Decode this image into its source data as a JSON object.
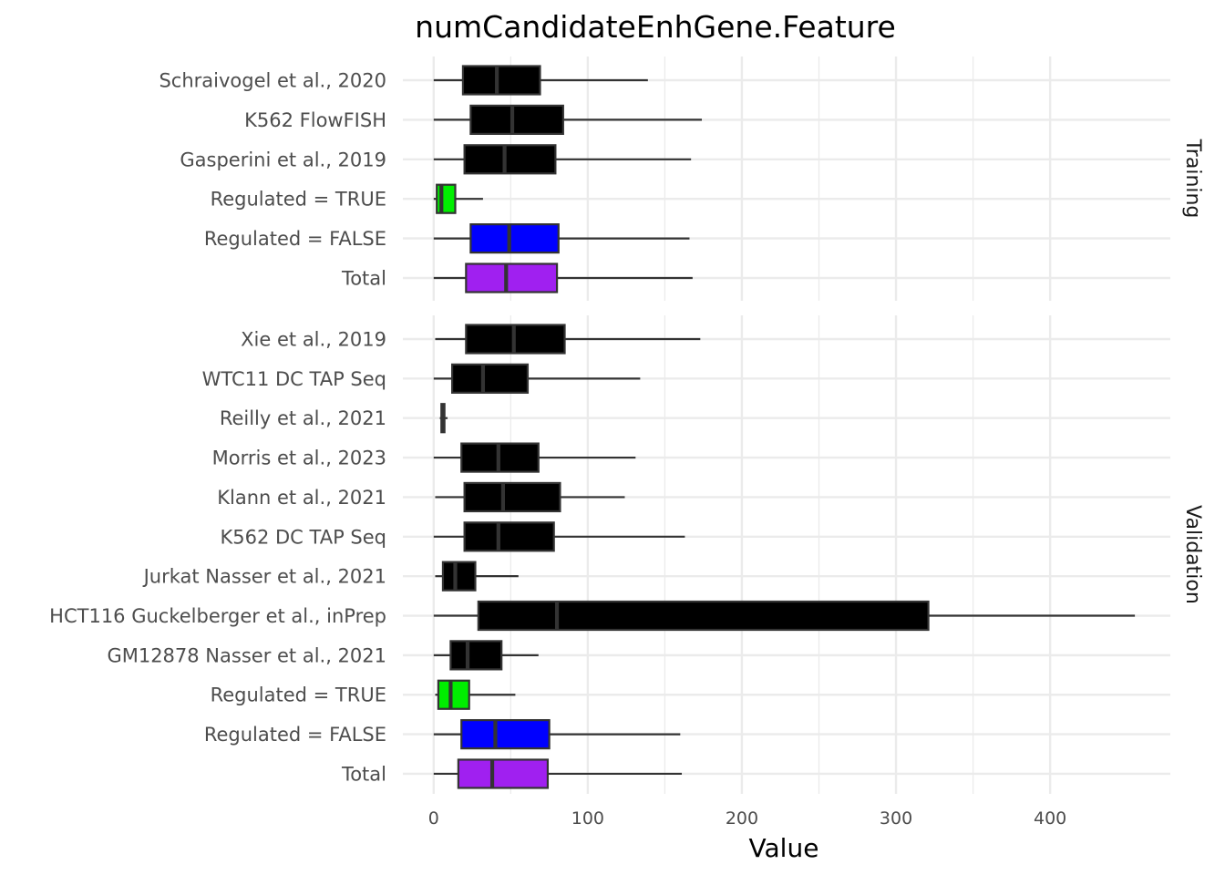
{
  "chart_data": {
    "type": "boxplot",
    "title": "numCandidateEnhGene.Feature",
    "xlabel": "Value",
    "ylabel": "",
    "xlim": [
      -20,
      478
    ],
    "x_ticks": [
      0,
      100,
      200,
      300,
      400
    ],
    "x_tick_labels": [
      "0",
      "100",
      "200",
      "300",
      "400"
    ],
    "grid": true,
    "legend": "none",
    "colors": {
      "dataset": "#000000",
      "regulated_true": "#00ee00",
      "regulated_false": "#0000ff",
      "total": "#a020f0",
      "box_outline": "#333333",
      "whisker": "#333333",
      "grid": "#ebebeb"
    },
    "panels": [
      {
        "facet": "Training",
        "rows": [
          {
            "label": "Schraivogel et al., 2020",
            "color": "#000000",
            "whisker_low": 0,
            "q1": 19,
            "median": 41,
            "q3": 69,
            "whisker_high": 139
          },
          {
            "label": "K562 FlowFISH",
            "color": "#000000",
            "whisker_low": 0,
            "q1": 24,
            "median": 51,
            "q3": 84,
            "whisker_high": 174
          },
          {
            "label": "Gasperini et al., 2019",
            "color": "#000000",
            "whisker_low": 0,
            "q1": 20,
            "median": 46,
            "q3": 79,
            "whisker_high": 167
          },
          {
            "label": "Regulated = TRUE",
            "color": "#00ee00",
            "whisker_low": 0,
            "q1": 2,
            "median": 5,
            "q3": 14,
            "whisker_high": 32
          },
          {
            "label": "Regulated = FALSE",
            "color": "#0000ff",
            "whisker_low": 0,
            "q1": 24,
            "median": 49,
            "q3": 81,
            "whisker_high": 166
          },
          {
            "label": "Total",
            "color": "#a020f0",
            "whisker_low": 0,
            "q1": 21,
            "median": 47,
            "q3": 80,
            "whisker_high": 168
          }
        ]
      },
      {
        "facet": "Validation",
        "rows": [
          {
            "label": "Xie et al., 2019",
            "color": "#000000",
            "whisker_low": 1,
            "q1": 21,
            "median": 52,
            "q3": 85,
            "whisker_high": 173
          },
          {
            "label": "WTC11 DC TAP Seq",
            "color": "#000000",
            "whisker_low": 0,
            "q1": 12,
            "median": 32,
            "q3": 61,
            "whisker_high": 134
          },
          {
            "label": "Reilly et al., 2021",
            "color": "#000000",
            "whisker_low": 4,
            "q1": 5,
            "median": 6,
            "q3": 7,
            "whisker_high": 9
          },
          {
            "label": "Morris et al., 2023",
            "color": "#000000",
            "whisker_low": 0,
            "q1": 18,
            "median": 42,
            "q3": 68,
            "whisker_high": 131
          },
          {
            "label": "Klann et al., 2021",
            "color": "#000000",
            "whisker_low": 1,
            "q1": 20,
            "median": 45,
            "q3": 82,
            "whisker_high": 124
          },
          {
            "label": "K562 DC TAP Seq",
            "color": "#000000",
            "whisker_low": 0,
            "q1": 20,
            "median": 42,
            "q3": 78,
            "whisker_high": 163
          },
          {
            "label": "Jurkat Nasser et al., 2021",
            "color": "#000000",
            "whisker_low": 1,
            "q1": 6,
            "median": 14,
            "q3": 27,
            "whisker_high": 55
          },
          {
            "label": "HCT116 Guckelberger et al., inPrep",
            "color": "#000000",
            "whisker_low": 0,
            "q1": 29,
            "median": 80,
            "q3": 321,
            "whisker_high": 455
          },
          {
            "label": "GM12878 Nasser et al., 2021",
            "color": "#000000",
            "whisker_low": 0,
            "q1": 11,
            "median": 22,
            "q3": 44,
            "whisker_high": 68
          },
          {
            "label": "Regulated = TRUE",
            "color": "#00ee00",
            "whisker_low": 1,
            "q1": 3,
            "median": 11,
            "q3": 23,
            "whisker_high": 53
          },
          {
            "label": "Regulated = FALSE",
            "color": "#0000ff",
            "whisker_low": 0,
            "q1": 18,
            "median": 40,
            "q3": 75,
            "whisker_high": 160
          },
          {
            "label": "Total",
            "color": "#a020f0",
            "whisker_low": 0,
            "q1": 16,
            "median": 38,
            "q3": 74,
            "whisker_high": 161
          }
        ]
      }
    ]
  }
}
